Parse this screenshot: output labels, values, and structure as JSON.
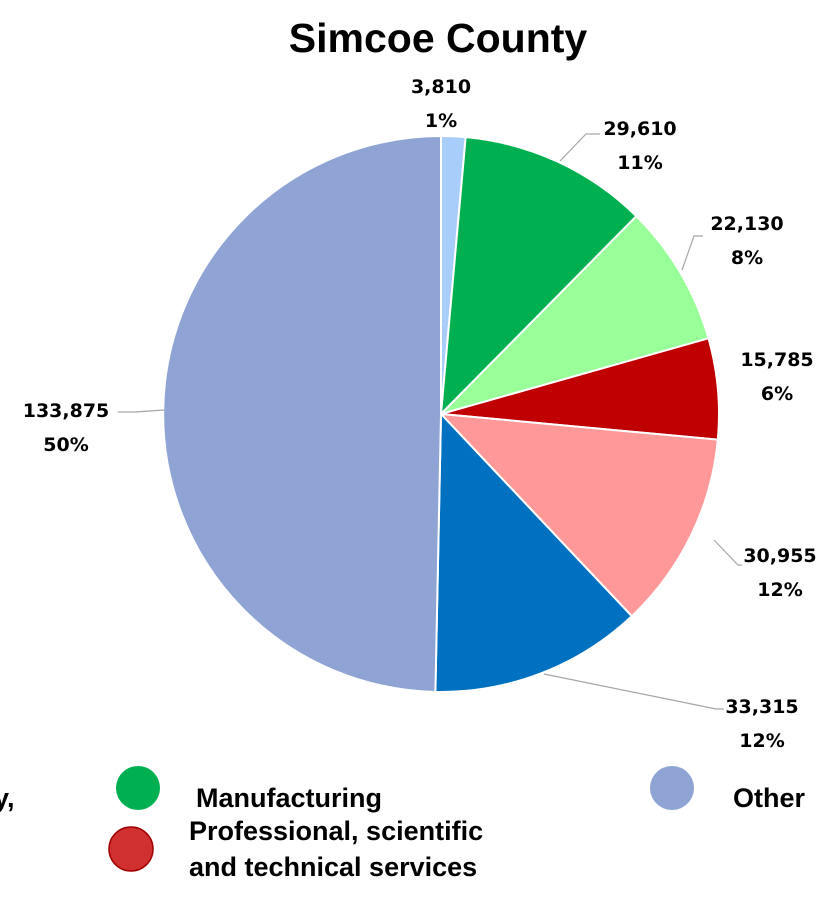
{
  "chart_data": {
    "type": "pie",
    "title": "Simcoe County",
    "start_angle_deg": 0,
    "direction": "clockwise",
    "slices": [
      {
        "value_label": "3,810",
        "pct_label": "1%",
        "value": 3810,
        "color": "#a9cdfa"
      },
      {
        "value_label": "29,610",
        "pct_label": "11%",
        "value": 29610,
        "color": "#00b050"
      },
      {
        "value_label": "22,130",
        "pct_label": "8%",
        "value": 22130,
        "color": "#99ff99"
      },
      {
        "value_label": "15,785",
        "pct_label": "6%",
        "value": 15785,
        "color": "#c00000"
      },
      {
        "value_label": "30,955",
        "pct_label": "12%",
        "value": 30955,
        "color": "#ff9999"
      },
      {
        "value_label": "33,315",
        "pct_label": "12%",
        "value": 33315,
        "color": "#0070c0"
      },
      {
        "value_label": "133,875",
        "pct_label": "50%",
        "value": 133875,
        "color": "#8fa4d4"
      }
    ],
    "legend": [
      {
        "label": "y,",
        "color": ""
      },
      {
        "label": "Manufacturing",
        "color": "#00b050"
      },
      {
        "label": "Other",
        "color": "#8fa4d4"
      },
      {
        "label": "Professional, scientific and technical services",
        "line1": "Professional, scientific",
        "line2": "and technical services",
        "color": "#d03030"
      }
    ]
  }
}
